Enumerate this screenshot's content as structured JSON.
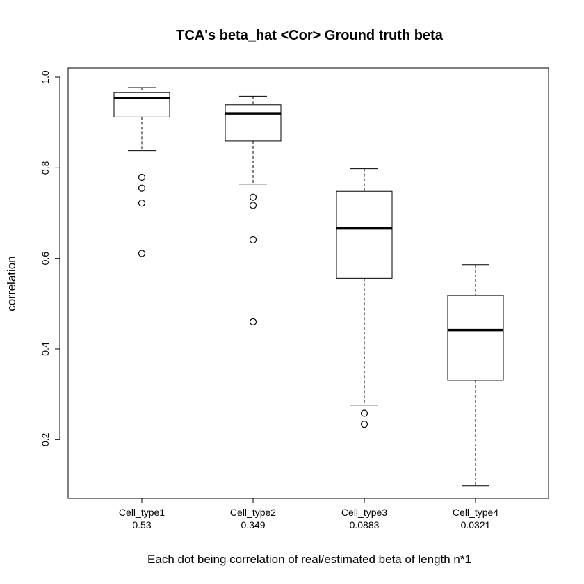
{
  "chart_data": {
    "type": "boxplot",
    "title": "TCA's beta_hat <Cor> Ground truth beta",
    "xlabel": "Each dot being correlation of real/estimated beta of length n*1",
    "ylabel": "correlation",
    "ylim": [
      0.07,
      1.02
    ],
    "yticks": [
      "0.2",
      "0.4",
      "0.6",
      "0.8",
      "1.0"
    ],
    "grid": false,
    "categories": [
      {
        "name": "Cell_type1",
        "sublabel": "0.53",
        "lower_whisker": 0.838,
        "q1": 0.912,
        "median": 0.954,
        "q3": 0.966,
        "upper_whisker": 0.977,
        "outliers": [
          0.779,
          0.755,
          0.722,
          0.611
        ]
      },
      {
        "name": "Cell_type2",
        "sublabel": "0.349",
        "lower_whisker": 0.764,
        "q1": 0.859,
        "median": 0.92,
        "q3": 0.939,
        "upper_whisker": 0.958,
        "outliers": [
          0.735,
          0.717,
          0.641,
          0.46
        ]
      },
      {
        "name": "Cell_type3",
        "sublabel": "0.0883",
        "lower_whisker": 0.276,
        "q1": 0.556,
        "median": 0.666,
        "q3": 0.748,
        "upper_whisker": 0.798,
        "outliers": [
          0.258,
          0.234
        ]
      },
      {
        "name": "Cell_type4",
        "sublabel": "0.0321",
        "lower_whisker": 0.098,
        "q1": 0.331,
        "median": 0.442,
        "q3": 0.518,
        "upper_whisker": 0.586,
        "outliers": []
      }
    ]
  }
}
